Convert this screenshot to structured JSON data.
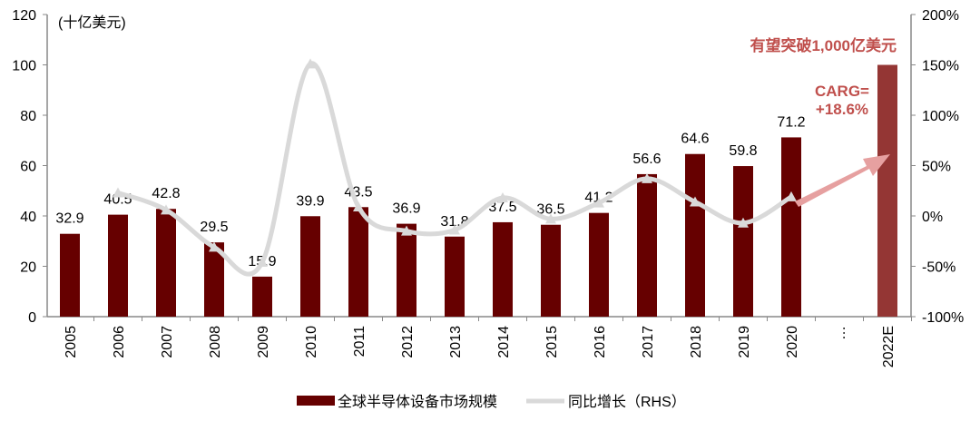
{
  "chart_data": {
    "type": "bar",
    "unit_label": "(十亿美元)",
    "categories": [
      "2005",
      "2006",
      "2007",
      "2008",
      "2009",
      "2010",
      "2011",
      "2012",
      "2013",
      "2014",
      "2015",
      "2016",
      "2017",
      "2018",
      "2019",
      "2020",
      "…",
      "2022E"
    ],
    "series": [
      {
        "name": "全球半导体设备市场规模",
        "type": "bar",
        "axis": "left",
        "color": "#660000",
        "values": [
          32.9,
          40.5,
          42.8,
          29.5,
          15.9,
          39.9,
          43.5,
          36.9,
          31.8,
          37.5,
          36.5,
          41.2,
          56.6,
          64.6,
          59.8,
          71.2,
          null,
          100
        ],
        "labels": [
          "32.9",
          "40.5",
          "42.8",
          "29.5",
          "15.9",
          "39.9",
          "43.5",
          "36.9",
          "31.8",
          "37.5",
          "36.5",
          "41.2",
          "56.6",
          "64.6",
          "59.8",
          "71.2",
          "",
          ""
        ]
      },
      {
        "name": "同比增长（RHS）",
        "type": "line",
        "axis": "right",
        "color": "#d9d9d9",
        "values": [
          null,
          23,
          6,
          -31,
          -46,
          151,
          9,
          -15,
          -14,
          18,
          -3,
          13,
          37,
          14,
          -7,
          19,
          null,
          null
        ]
      }
    ],
    "forecast_color": "#943634",
    "left_axis": {
      "ylim": [
        0,
        120
      ],
      "ticks": [
        "0",
        "20",
        "40",
        "60",
        "80",
        "100",
        "120"
      ]
    },
    "right_axis": {
      "ylim": [
        -100,
        200
      ],
      "ticks": [
        "-100%",
        "-50%",
        "0%",
        "50%",
        "100%",
        "150%",
        "200%"
      ]
    },
    "annotations": {
      "target": "有望突破1,000亿美元",
      "cagr_line1": "CARG=",
      "cagr_line2": "+18.6%",
      "color": "#c0504d",
      "arrow_color": "#e6a0a0"
    },
    "legend_position": "bottom"
  }
}
